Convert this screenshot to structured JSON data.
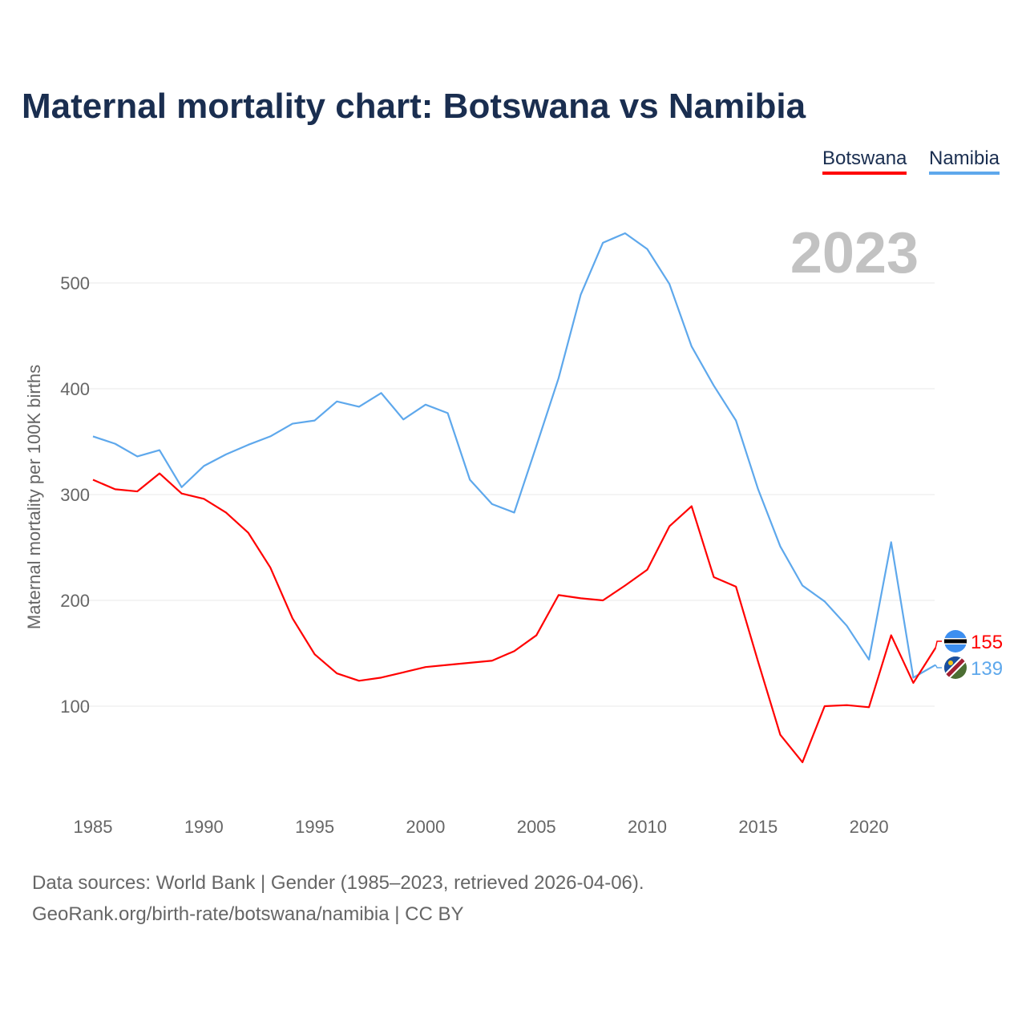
{
  "title": "Maternal mortality chart: Botswana vs Namibia",
  "footer": {
    "line1": "Data sources: World Bank | Gender (1985–2023, retrieved 2026-04-06).",
    "line2": "GeoRank.org/birth-rate/botswana/namibia | CC BY"
  },
  "chart_data": {
    "type": "line",
    "title": "Maternal mortality chart: Botswana vs Namibia",
    "year_label": "2023",
    "ylabel": "Maternal mortality per 100K births",
    "xlabel": "",
    "xlim": [
      1985,
      2023
    ],
    "ylim": [
      0,
      560
    ],
    "xticks": [
      "1985",
      "1990",
      "1995",
      "2000",
      "2005",
      "2010",
      "2015",
      "2020"
    ],
    "yticks": [
      "100",
      "200",
      "300",
      "400",
      "500"
    ],
    "grid": true,
    "legend_position": "top-right",
    "x": [
      1985,
      1986,
      1987,
      1988,
      1989,
      1990,
      1991,
      1992,
      1993,
      1994,
      1995,
      1996,
      1997,
      1998,
      1999,
      2000,
      2001,
      2002,
      2003,
      2004,
      2005,
      2006,
      2007,
      2008,
      2009,
      2010,
      2011,
      2012,
      2013,
      2014,
      2015,
      2016,
      2017,
      2018,
      2019,
      2020,
      2021,
      2022,
      2023
    ],
    "series": [
      {
        "name": "Botswana",
        "color": "#ff0000",
        "end_label": "155",
        "values": [
          314,
          305,
          303,
          320,
          301,
          296,
          283,
          264,
          231,
          183,
          149,
          131,
          124,
          127,
          132,
          137,
          139,
          141,
          143,
          152,
          167,
          205,
          202,
          200,
          214,
          229,
          270,
          289,
          222,
          213,
          142,
          73,
          47,
          100,
          101,
          99,
          167,
          122,
          155
        ]
      },
      {
        "name": "Namibia",
        "color": "#5ea8ec",
        "end_label": "139",
        "values": [
          355,
          348,
          336,
          342,
          307,
          327,
          338,
          347,
          355,
          367,
          370,
          388,
          383,
          396,
          371,
          385,
          377,
          314,
          291,
          283,
          346,
          410,
          489,
          538,
          547,
          532,
          499,
          440,
          403,
          370,
          305,
          251,
          214,
          199,
          176,
          144,
          255,
          127,
          139
        ]
      }
    ]
  }
}
